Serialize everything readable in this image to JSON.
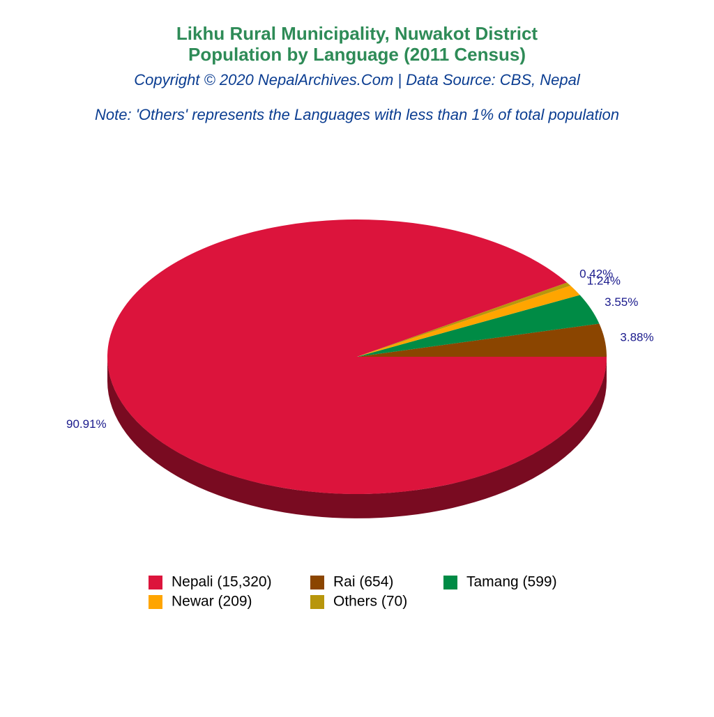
{
  "chart_data": {
    "type": "pie",
    "title": [
      "Likhu Rural Municipality, Nuwakot District",
      "Population by Language (2011 Census)"
    ],
    "subtitle": "Copyright © 2020 NepalArchives.Com | Data Source: CBS, Nepal",
    "note": "Note: 'Others' represents the Languages with less than 1% of total population",
    "categories": [
      "Rai (654)",
      "Tamang (599)",
      "Newar (209)",
      "Others (70)",
      "Nepali (15,320)"
    ],
    "values": [
      3.88,
      3.55,
      1.24,
      0.42,
      90.91
    ],
    "value_labels": [
      "3.88%",
      "3.55%",
      "1.24%",
      "0.42%",
      "90.91%"
    ],
    "colors": [
      "#8b4500",
      "#008b45",
      "#ffa500",
      "#b8960c",
      "#dc143c"
    ],
    "legend_order": [
      4,
      0,
      1,
      2,
      3
    ]
  }
}
